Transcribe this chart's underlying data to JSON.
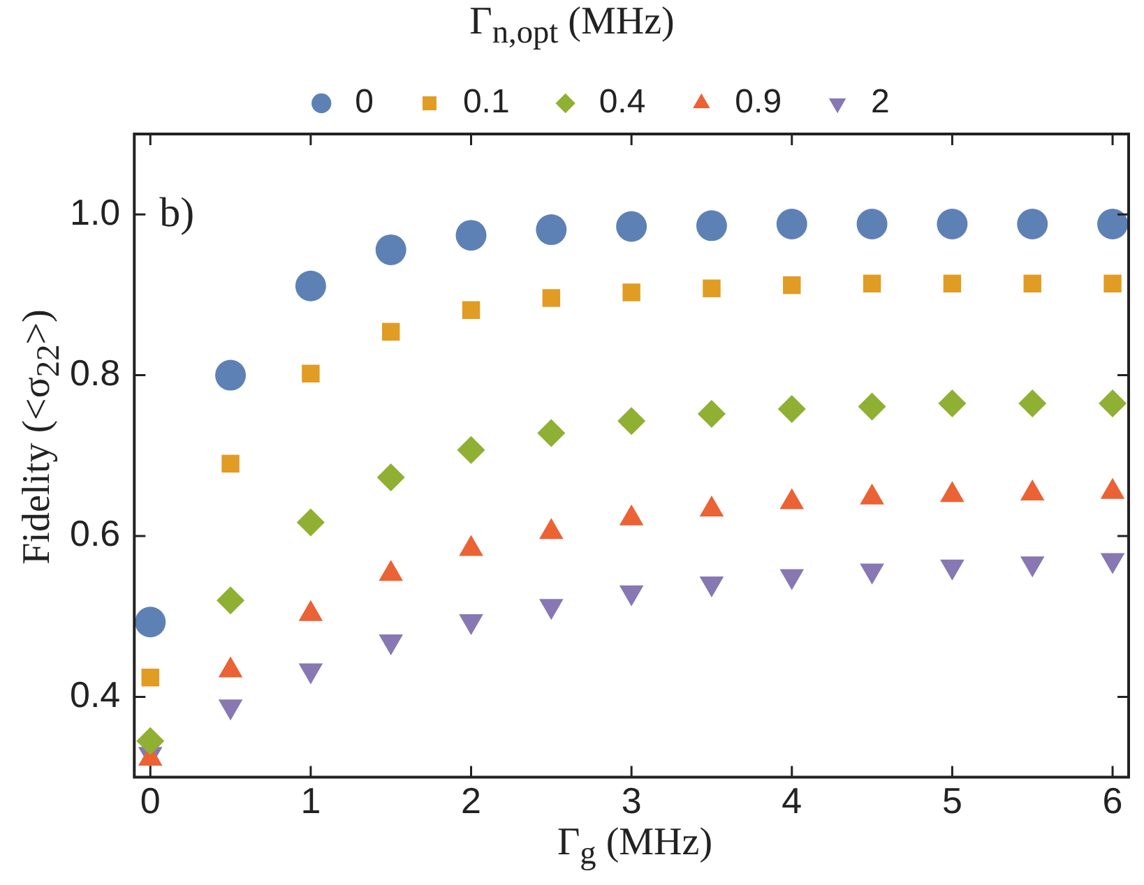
{
  "chart_data": {
    "type": "scatter",
    "xlabel": "Γ$_{g}$ (MHz)",
    "ylabel": "Fidelity (<σ$_{22}$>)",
    "legend_title": "Γ$_{n,opt}$ (MHz)",
    "legend": "top",
    "grid": false,
    "x": [
      0,
      0.5,
      1,
      1.5,
      2,
      2.5,
      3,
      3.5,
      4,
      4.5,
      5,
      5.5,
      6
    ],
    "xlim": [
      -0.1,
      6.1
    ],
    "xticks": [
      0,
      1,
      2,
      3,
      4,
      5,
      6
    ],
    "ylim": [
      0.3,
      1.1
    ],
    "yticks": [
      0.4,
      0.6,
      0.8,
      {
        "value": 1,
        "label": "1.0"
      }
    ],
    "annotations": [
      "b)"
    ],
    "series": [
      {
        "name": "0",
        "color": "#5e81b5",
        "marker": "circle",
        "values": [
          0.493,
          0.8,
          0.911,
          0.956,
          0.974,
          0.981,
          0.985,
          0.986,
          0.988,
          0.988,
          0.988,
          0.988,
          0.988
        ]
      },
      {
        "name": "0.1",
        "color": "#e19c24",
        "marker": "square",
        "values": [
          0.424,
          0.69,
          0.802,
          0.854,
          0.881,
          0.896,
          0.903,
          0.908,
          0.912,
          0.914,
          0.914,
          0.914,
          0.914
        ]
      },
      {
        "name": "0.4",
        "color": "#8fb032",
        "marker": "diamond",
        "values": [
          0.345,
          0.52,
          0.617,
          0.673,
          0.707,
          0.728,
          0.743,
          0.752,
          0.758,
          0.761,
          0.765,
          0.765,
          0.765
        ]
      },
      {
        "name": "0.9",
        "color": "#eb6235",
        "marker": "triangle",
        "values": [
          0.323,
          0.433,
          0.503,
          0.553,
          0.584,
          0.605,
          0.622,
          0.633,
          0.642,
          0.648,
          0.651,
          0.653,
          0.655
        ]
      },
      {
        "name": "2",
        "color": "#8778b3",
        "marker": "triangle-down",
        "values": [
          0.329,
          0.388,
          0.433,
          0.469,
          0.494,
          0.513,
          0.53,
          0.541,
          0.55,
          0.557,
          0.562,
          0.566,
          0.57
        ]
      }
    ]
  }
}
